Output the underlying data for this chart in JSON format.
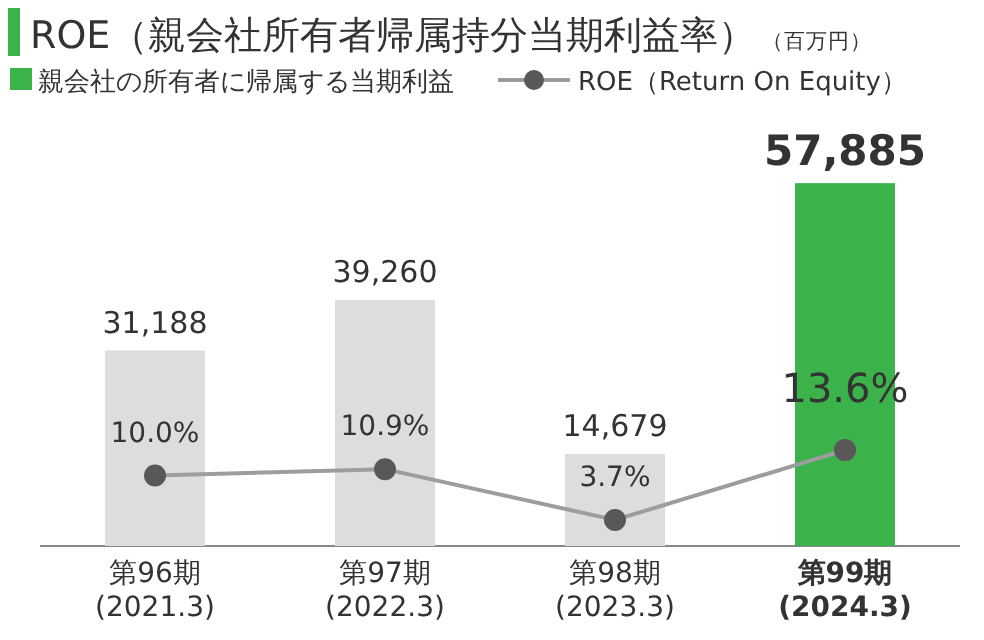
{
  "chart_data": {
    "type": "bar",
    "title": "ROE（親会社所有者帰属持分当期利益率）",
    "annotations": [
      "（百万円）"
    ],
    "categories": [
      "第96期\n(2021.3)",
      "第97期\n(2022.3)",
      "第98期\n(2023.3)",
      "第99期\n(2024.3)"
    ],
    "series": [
      {
        "name": "親会社の所有者に帰属する当期利益",
        "color": "#3bb34a",
        "colors": [
          "#dcdddd",
          "#dcdddd",
          "#dcdddd",
          "#3bb34a"
        ],
        "values": [
          31188,
          39260,
          14679,
          57885
        ],
        "value_labels": [
          "31,188",
          "39,260",
          "14,679",
          "57,885"
        ]
      },
      {
        "name": "ROE（Return On Equity）",
        "type": "line",
        "axis": "y2",
        "color": "#9d9d9d",
        "marker": "circle",
        "values": [
          10.0,
          10.9,
          3.7,
          13.6
        ],
        "value_labels": [
          "10.0%",
          "10.9%",
          "3.7%",
          "13.6%"
        ]
      }
    ],
    "legend": "top left"
  }
}
